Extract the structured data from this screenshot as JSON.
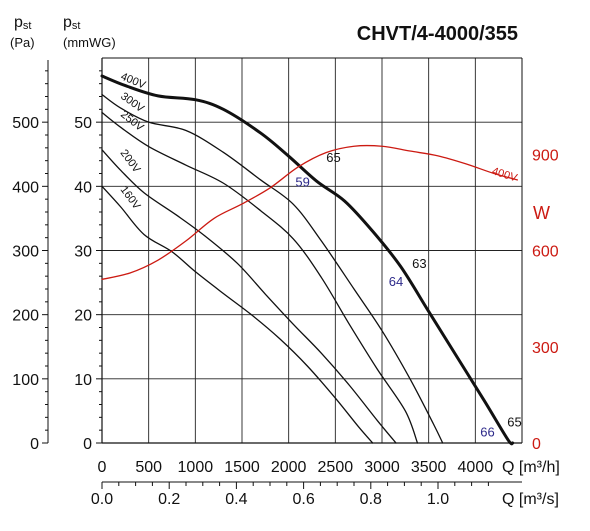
{
  "chart_data": {
    "type": "line",
    "title": "CHVT/4-4000/355",
    "x_axis_primary": {
      "label": "Q [m³/h]",
      "range": [
        0,
        4500
      ],
      "ticks": [
        "0",
        "500",
        "1000",
        "1500",
        "2000",
        "2500",
        "3000",
        "3500",
        "4000"
      ]
    },
    "x_axis_secondary": {
      "label": "Q [m³/s]",
      "range": [
        0,
        1.25
      ],
      "ticks": [
        "0.0",
        "0.2",
        "0.4",
        "0.6",
        "0.8",
        "1.0"
      ]
    },
    "y_axis_pa": {
      "unit_main": "p",
      "unit_sub": "st",
      "unit_line2": "(Pa)",
      "range": [
        0,
        600
      ],
      "ticks": [
        "0",
        "100",
        "200",
        "300",
        "400",
        "500"
      ]
    },
    "y_axis_mmwg": {
      "unit_main": "p",
      "unit_sub": "st",
      "unit_line2": "(mmWG)",
      "range": [
        0,
        60
      ],
      "ticks": [
        "0",
        "10",
        "20",
        "30",
        "40",
        "50"
      ]
    },
    "y_axis_power": {
      "label": "W",
      "range": [
        0,
        1200
      ],
      "ticks": [
        "0",
        "300",
        "600",
        "900"
      ],
      "color": "#cc1a12"
    },
    "grid": true,
    "series": [
      {
        "name": "400V",
        "axis": "pressure",
        "bold": true,
        "points": [
          [
            0,
            572
          ],
          [
            250,
            557
          ],
          [
            600,
            541
          ],
          [
            1000,
            535
          ],
          [
            1300,
            520
          ],
          [
            1700,
            483
          ],
          [
            2000,
            447
          ],
          [
            2300,
            408
          ],
          [
            2600,
            377
          ],
          [
            2900,
            330
          ],
          [
            3200,
            275
          ],
          [
            3500,
            205
          ],
          [
            3800,
            135
          ],
          [
            4100,
            65
          ],
          [
            4350,
            5
          ],
          [
            4400,
            0
          ]
        ]
      },
      {
        "name": "300V",
        "axis": "pressure",
        "points": [
          [
            0,
            543
          ],
          [
            200,
            522
          ],
          [
            500,
            500
          ],
          [
            900,
            487
          ],
          [
            1300,
            453
          ],
          [
            1700,
            410
          ],
          [
            2050,
            372
          ],
          [
            2350,
            315
          ],
          [
            2700,
            240
          ],
          [
            3000,
            175
          ],
          [
            3300,
            100
          ],
          [
            3550,
            30
          ],
          [
            3650,
            0
          ]
        ]
      },
      {
        "name": "250V",
        "axis": "pressure",
        "points": [
          [
            0,
            515
          ],
          [
            200,
            492
          ],
          [
            500,
            462
          ],
          [
            900,
            433
          ],
          [
            1300,
            405
          ],
          [
            1700,
            362
          ],
          [
            2050,
            318
          ],
          [
            2350,
            258
          ],
          [
            2650,
            185
          ],
          [
            2950,
            115
          ],
          [
            3250,
            50
          ],
          [
            3380,
            0
          ]
        ]
      },
      {
        "name": "200V",
        "axis": "pressure",
        "points": [
          [
            0,
            457
          ],
          [
            200,
            425
          ],
          [
            450,
            390
          ],
          [
            800,
            355
          ],
          [
            1100,
            323
          ],
          [
            1450,
            280
          ],
          [
            1750,
            232
          ],
          [
            2050,
            185
          ],
          [
            2350,
            140
          ],
          [
            2650,
            90
          ],
          [
            2950,
            35
          ],
          [
            3150,
            0
          ]
        ]
      },
      {
        "name": "160V",
        "axis": "pressure",
        "points": [
          [
            0,
            400
          ],
          [
            200,
            368
          ],
          [
            450,
            325
          ],
          [
            750,
            298
          ],
          [
            1000,
            267
          ],
          [
            1300,
            233
          ],
          [
            1600,
            200
          ],
          [
            1900,
            163
          ],
          [
            2200,
            120
          ],
          [
            2500,
            70
          ],
          [
            2750,
            25
          ],
          [
            2900,
            0
          ]
        ]
      },
      {
        "name": "400V",
        "axis": "power",
        "color": "#cc1a12",
        "points": [
          [
            0,
            510
          ],
          [
            300,
            530
          ],
          [
            600,
            570
          ],
          [
            900,
            630
          ],
          [
            1200,
            700
          ],
          [
            1500,
            745
          ],
          [
            1800,
            795
          ],
          [
            2100,
            860
          ],
          [
            2400,
            905
          ],
          [
            2700,
            925
          ],
          [
            3000,
            925
          ],
          [
            3300,
            910
          ],
          [
            3600,
            895
          ],
          [
            3900,
            870
          ],
          [
            4200,
            840
          ],
          [
            4450,
            820
          ]
        ]
      }
    ],
    "annotations": [
      {
        "text": "65",
        "color": "#111111",
        "x": 2480,
        "y": 438
      },
      {
        "text": "59",
        "color": "#2d2a8a",
        "x": 2150,
        "y": 400
      },
      {
        "text": "63",
        "color": "#111111",
        "x": 3400,
        "y": 273
      },
      {
        "text": "64",
        "color": "#2d2a8a",
        "x": 3150,
        "y": 245
      },
      {
        "text": "65",
        "color": "#111111",
        "x": 4420,
        "y": 26
      },
      {
        "text": "66",
        "color": "#2d2a8a",
        "x": 4130,
        "y": 10
      }
    ]
  }
}
